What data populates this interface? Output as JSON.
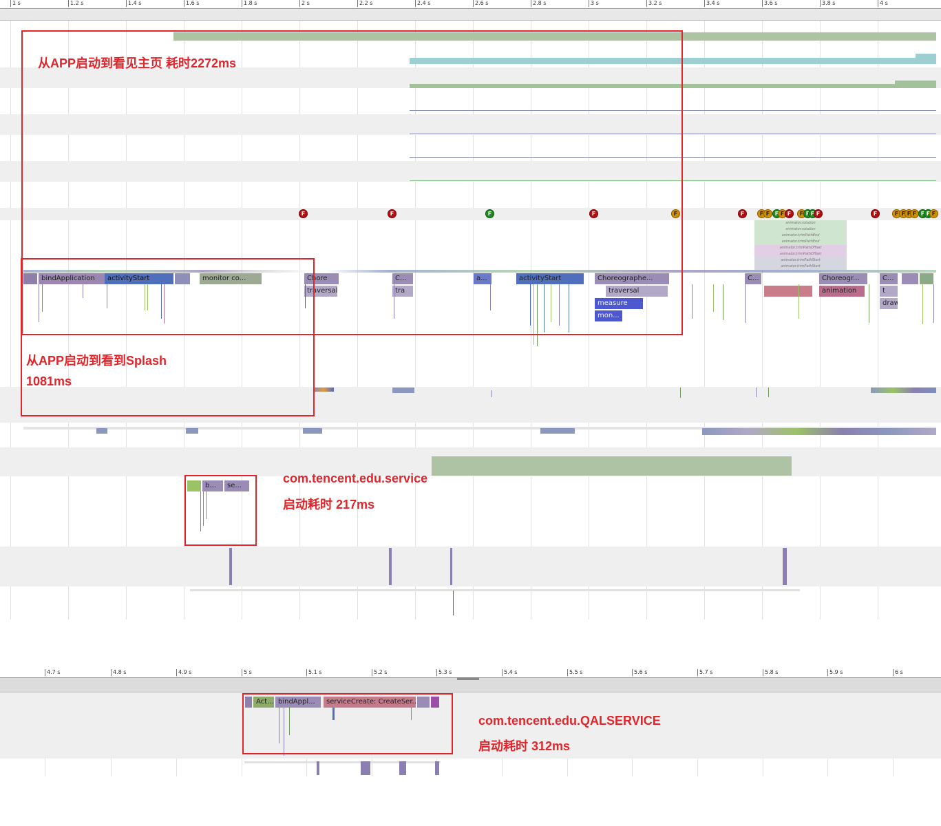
{
  "top_ruler": {
    "ticks": [
      "1 s",
      "1.2 s",
      "1.4 s",
      "1.6 s",
      "1.8 s",
      "2 s",
      "2.2 s",
      "2.4 s",
      "2.6 s",
      "2.8 s",
      "3 s",
      "3.2 s",
      "3.4 s",
      "3.6 s",
      "3.8 s",
      "4 s"
    ]
  },
  "bottom_ruler": {
    "ticks": [
      "4.7 s",
      "4.8 s",
      "4.9 s",
      "5 s",
      "5.1 s",
      "5.2 s",
      "5.3 s",
      "5.4 s",
      "5.5 s",
      "5.6 s",
      "5.7 s",
      "5.8 s",
      "5.9 s",
      "6 s"
    ]
  },
  "main_thread_slices": {
    "bind_application": "bindApplication",
    "activity_start_1": "activityStart",
    "monitor": "monitor co...",
    "chore_1": "Chore",
    "traversal_1": "traversal",
    "c_1": "C...",
    "tra": "tra",
    "a_short": "a...",
    "activity_start_2": "activityStart",
    "choreographer_2": "Choreographe...",
    "traversal_2": "traversal",
    "measure": "measure",
    "mon": "mon...",
    "c_2": "C...",
    "choreogr_3": "Choreogr...",
    "animation": "animation",
    "c_3": "C...",
    "t": "t",
    "draw": "draw"
  },
  "frame_markers": {
    "symbol": "F"
  },
  "animator_rows": [
    "animator.rotation",
    "animator.rotation",
    "animator.trimPathEnd",
    "animator.trimPathEnd",
    "animator.trimPathOffset",
    "animator.trimPathOffset",
    "animator.trimPathStart",
    "animator.trimPathStart"
  ],
  "service_slices": {
    "b": "b...",
    "se": "se..."
  },
  "qal_slices": {
    "act": "Act...",
    "bind": "bindAppl...",
    "service_create": "serviceCreate: CreateSer..."
  },
  "annotations": {
    "main_line1": "从APP启动到看见主页 耗时2272ms",
    "splash_line1": "从APP启动到看到Splash",
    "splash_line2": "1081ms",
    "service_line1": "com.tencent.edu.service",
    "service_line2": "启动耗时 217ms",
    "qal_line1": "com.tencent.edu.QALSERVICE",
    "qal_line2": "启动耗时 312ms"
  },
  "colors": {
    "annotation": "#e0252b",
    "frame_red": "#b40f10",
    "frame_green": "#1e8a1e",
    "frame_orange": "#d08f00"
  }
}
